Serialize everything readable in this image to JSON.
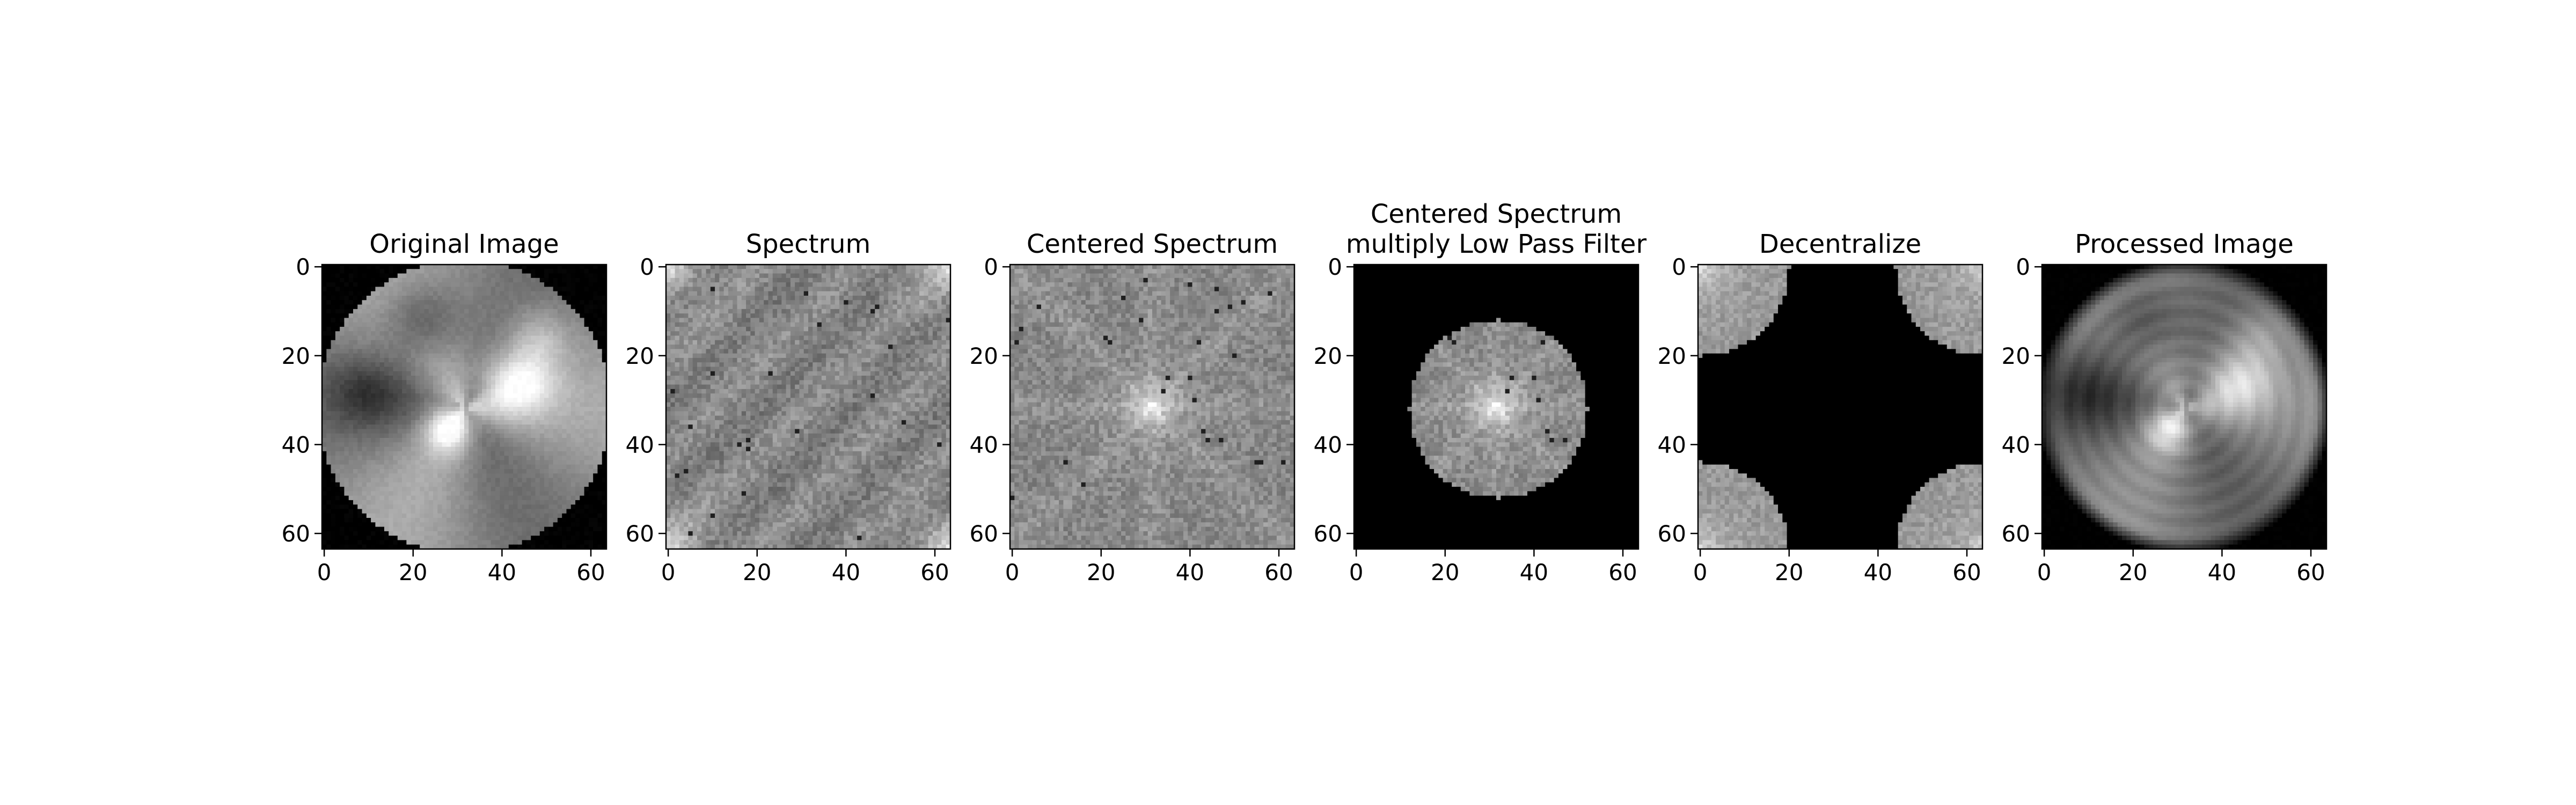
{
  "figure": {
    "background": "#ffffff"
  },
  "chart_data": [
    {
      "type": "heatmap",
      "title": "Original Image",
      "image": "original-image",
      "xlim": [
        0,
        63
      ],
      "ylim": [
        63,
        0
      ],
      "xticks": [
        0,
        20,
        40,
        60
      ],
      "yticks": [
        0,
        20,
        40,
        60
      ],
      "colormap": "gray"
    },
    {
      "type": "heatmap",
      "title": "Spectrum",
      "image": "spectrum",
      "xlim": [
        0,
        63
      ],
      "ylim": [
        63,
        0
      ],
      "xticks": [
        0,
        20,
        40,
        60
      ],
      "yticks": [
        0,
        20,
        40,
        60
      ],
      "colormap": "gray"
    },
    {
      "type": "heatmap",
      "title": "Centered Spectrum",
      "image": "centered-spectrum",
      "xlim": [
        0,
        63
      ],
      "ylim": [
        63,
        0
      ],
      "xticks": [
        0,
        20,
        40,
        60
      ],
      "yticks": [
        0,
        20,
        40,
        60
      ],
      "colormap": "gray"
    },
    {
      "type": "heatmap",
      "title": "Centered Spectrum\nmultiply Low Pass Filter",
      "image": "filtered-spectrum",
      "filter_radius": 20,
      "xlim": [
        0,
        63
      ],
      "ylim": [
        63,
        0
      ],
      "xticks": [
        0,
        20,
        40,
        60
      ],
      "yticks": [
        0,
        20,
        40,
        60
      ],
      "colormap": "gray"
    },
    {
      "type": "heatmap",
      "title": "Decentralize",
      "image": "decentralized-spectrum",
      "filter_radius": 20,
      "xlim": [
        0,
        63
      ],
      "ylim": [
        63,
        0
      ],
      "xticks": [
        0,
        20,
        40,
        60
      ],
      "yticks": [
        0,
        20,
        40,
        60
      ],
      "colormap": "gray"
    },
    {
      "type": "heatmap",
      "title": "Processed Image",
      "image": "processed-image",
      "xlim": [
        0,
        63
      ],
      "ylim": [
        63,
        0
      ],
      "xticks": [
        0,
        20,
        40,
        60
      ],
      "yticks": [
        0,
        20,
        40,
        60
      ],
      "colormap": "gray"
    }
  ]
}
